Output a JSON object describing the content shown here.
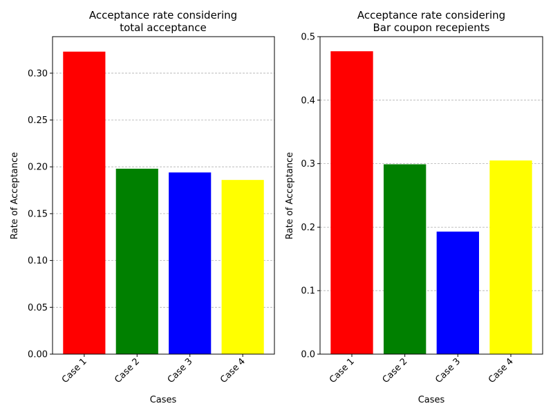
{
  "chart_data": [
    {
      "type": "bar",
      "title_lines": [
        "Acceptance rate considering",
        "total acceptance"
      ],
      "xlabel": "Cases",
      "ylabel": "Rate of Acceptance",
      "categories": [
        "Case 1",
        "Case 2",
        "Case 3",
        "Case 4"
      ],
      "values": [
        0.323,
        0.198,
        0.194,
        0.186
      ],
      "colors": [
        "#ff0000",
        "#008000",
        "#0000ff",
        "#ffff00"
      ],
      "ylim": [
        0,
        0.339
      ],
      "yticks": [
        0.0,
        0.05,
        0.1,
        0.15,
        0.2,
        0.25,
        0.3
      ],
      "ytick_labels": [
        "0.00",
        "0.05",
        "0.10",
        "0.15",
        "0.20",
        "0.25",
        "0.30"
      ],
      "grid": "y, dashed"
    },
    {
      "type": "bar",
      "title_lines": [
        "Acceptance rate considering",
        "Bar coupon recepients"
      ],
      "xlabel": "Cases",
      "ylabel": "Rate of Acceptance",
      "categories": [
        "Case 1",
        "Case 2",
        "Case 3",
        "Case 4"
      ],
      "values": [
        0.477,
        0.299,
        0.193,
        0.305
      ],
      "colors": [
        "#ff0000",
        "#008000",
        "#0000ff",
        "#ffff00"
      ],
      "ylim": [
        0,
        0.5
      ],
      "yticks": [
        0.0,
        0.1,
        0.2,
        0.3,
        0.4,
        0.5
      ],
      "ytick_labels": [
        "0.0",
        "0.1",
        "0.2",
        "0.3",
        "0.4",
        "0.5"
      ],
      "grid": "y, dashed"
    }
  ]
}
